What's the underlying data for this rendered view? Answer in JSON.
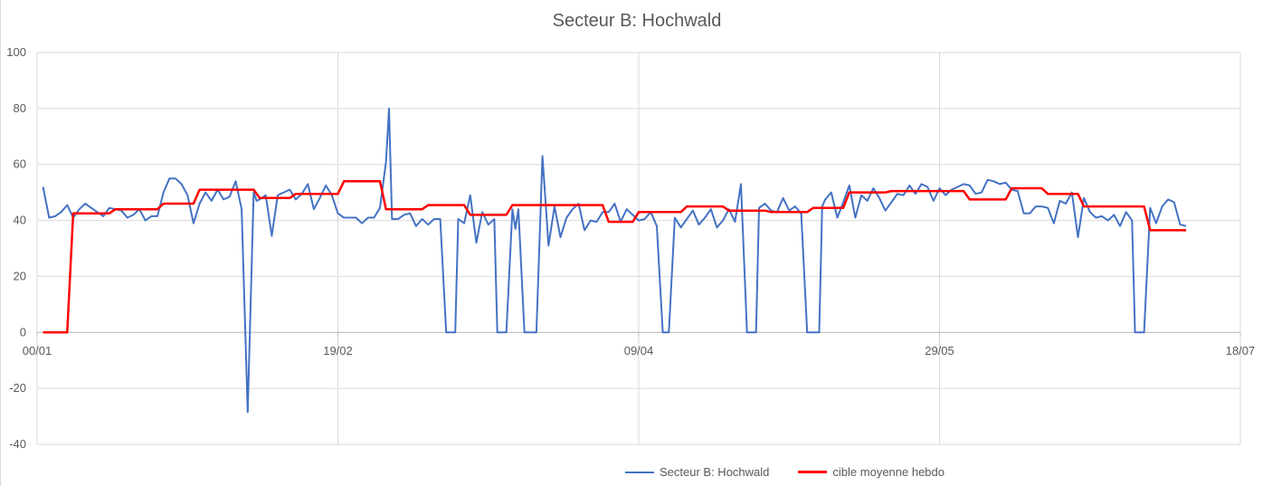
{
  "chart_data": {
    "type": "line",
    "title": "Secteur B: Hochwald",
    "xlabel": "",
    "ylabel": "",
    "ylim": [
      -40,
      100
    ],
    "yticks": [
      -40,
      -20,
      0,
      20,
      40,
      60,
      80,
      100
    ],
    "ytick_labels": [
      "-40",
      "-20",
      "0",
      "20",
      "40",
      "60",
      "80",
      "100"
    ],
    "xlim_day": [
      0,
      200
    ],
    "xticks": [
      0,
      50,
      100,
      150,
      200
    ],
    "xtick_labels": [
      "00/01",
      "19/02",
      "09/04",
      "29/05",
      "18/07"
    ],
    "grid": true,
    "legend_position": "bottom",
    "series": [
      {
        "name": "Secteur B: Hochwald",
        "color": "#4472c4",
        "x": [
          1,
          2,
          3,
          4,
          5,
          6,
          7,
          8,
          9,
          10,
          11,
          12,
          13,
          14,
          15,
          16,
          17,
          18,
          19,
          20,
          21,
          22,
          23,
          24,
          25,
          26,
          27,
          28,
          29,
          30,
          31,
          32,
          33,
          34,
          35,
          36,
          36.5,
          37,
          38,
          39,
          40,
          41,
          42,
          43,
          44,
          45,
          46,
          47,
          48,
          49,
          50,
          51,
          52,
          53,
          54,
          55,
          56,
          57,
          58,
          58.5,
          59,
          60,
          61,
          62,
          63,
          64,
          65,
          66,
          67,
          68,
          69,
          69.5,
          70,
          71,
          72,
          73,
          74,
          75,
          76,
          76.5,
          77,
          78,
          79,
          79.5,
          80,
          81,
          82,
          83,
          84,
          85,
          86,
          87,
          88,
          89,
          90,
          91,
          92,
          93,
          94,
          95,
          96,
          97,
          98,
          99,
          100,
          101,
          102,
          103,
          104,
          104.5,
          105,
          106,
          107,
          108,
          109,
          110,
          111,
          112,
          113,
          114,
          115,
          116,
          117,
          118,
          119,
          119.5,
          120,
          121,
          122,
          123,
          124,
          125,
          126,
          127,
          128,
          129,
          130,
          130.5,
          131,
          132,
          133,
          134,
          135,
          136,
          137,
          138,
          139,
          140,
          141,
          142,
          143,
          144,
          145,
          146,
          147,
          148,
          149,
          150,
          151,
          152,
          153,
          154,
          155,
          156,
          157,
          158,
          159,
          160,
          161,
          162,
          163,
          164,
          165,
          166,
          167,
          168,
          169,
          170,
          171,
          172,
          173,
          174,
          175,
          176,
          177,
          178,
          179,
          180,
          181,
          182,
          182.5,
          183,
          184,
          185,
          186,
          187,
          188,
          189,
          190,
          191
        ],
        "y": [
          52,
          41,
          41.5,
          43,
          45.5,
          41,
          44,
          46,
          44.5,
          43,
          41.5,
          44.5,
          44,
          43.5,
          41,
          42,
          44,
          40,
          41.5,
          41.5,
          50,
          55,
          55,
          53,
          49,
          39,
          46,
          50,
          47,
          51,
          47.5,
          48.5,
          54,
          44,
          -28.5,
          50,
          47,
          47.5,
          49,
          34.5,
          49,
          50,
          51,
          47.5,
          49.5,
          53,
          44,
          48,
          52.5,
          49,
          42.5,
          41,
          41,
          41,
          39,
          41,
          41,
          44.5,
          61,
          80,
          40.5,
          40.5,
          42,
          42.5,
          38,
          40.5,
          38.5,
          40.5,
          40.5,
          0,
          0,
          0,
          40.5,
          39,
          49,
          32,
          43,
          38.5,
          40.5,
          0,
          0,
          0,
          44,
          37,
          44,
          0,
          0,
          0,
          63,
          31,
          45,
          34,
          41,
          44,
          46,
          36.5,
          40,
          39.5,
          43,
          43,
          46,
          39.5,
          44,
          42,
          40,
          40.5,
          43,
          38,
          0,
          0,
          0,
          41,
          37.5,
          40.5,
          43.5,
          38.5,
          41,
          44,
          37.5,
          40,
          44,
          39.5,
          53,
          0,
          0,
          0,
          44.5,
          46,
          43.5,
          43,
          48,
          43.5,
          45,
          42.5,
          0,
          0,
          0,
          45,
          47.5,
          50,
          41,
          46.5,
          52.5,
          41,
          49,
          47,
          51.5,
          48,
          43.5,
          46.5,
          49.5,
          49,
          52.5,
          49.5,
          53,
          52,
          47,
          51.5,
          49,
          51,
          52,
          53,
          52.5,
          49.5,
          50,
          54.5,
          54,
          53,
          53.5,
          51,
          50.5,
          42.5,
          42.5,
          45,
          45,
          44.5,
          39,
          47,
          46,
          50,
          34,
          48,
          43,
          41,
          41.5,
          40,
          42,
          38,
          43,
          40,
          0,
          0,
          0,
          44.5,
          39,
          45,
          47.5,
          46.5,
          38.5,
          38
        ]
      },
      {
        "name": "cible moyenne hebdo",
        "color": "#ff0000",
        "x": [
          1,
          5,
          6,
          92,
          93,
          140,
          141,
          154,
          155,
          191
        ],
        "y": [
          0,
          0,
          42.5,
          42.5,
          39.5,
          39.5,
          50,
          50,
          48,
          36.5
        ],
        "step_x": [
          1,
          5,
          6,
          12,
          13,
          20,
          21,
          26,
          27,
          36,
          37,
          42,
          43,
          50,
          51,
          57,
          58,
          64,
          65,
          71,
          72,
          78,
          79,
          85,
          86,
          94,
          95,
          99,
          100,
          107,
          108,
          114,
          115,
          121,
          122,
          128,
          129,
          134,
          135,
          141,
          142,
          154,
          155,
          161,
          162,
          167,
          168,
          173,
          174,
          184,
          185,
          191
        ],
        "step_y": [
          0,
          0,
          42.5,
          42.5,
          44,
          44,
          46,
          46,
          51,
          51,
          48,
          48,
          49.5,
          49.5,
          54,
          54,
          44,
          44,
          45.5,
          45.5,
          42,
          42,
          45.5,
          45.5,
          45.5,
          45.5,
          39.5,
          39.5,
          43,
          43,
          45,
          45,
          43.5,
          43.5,
          43,
          43,
          44.5,
          44.5,
          50,
          50,
          50.5,
          50.5,
          47.5,
          47.5,
          51.5,
          51.5,
          49.5,
          49.5,
          45,
          45,
          36.5,
          36.5
        ]
      }
    ]
  }
}
